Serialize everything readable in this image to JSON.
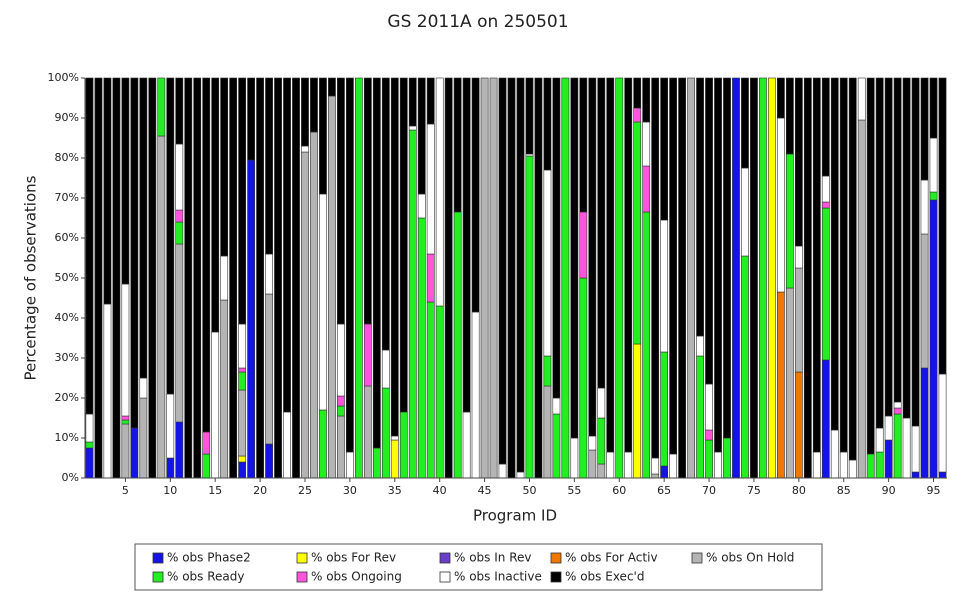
{
  "chart_data": {
    "type": "stacked-bar",
    "title": "GS 2011A on 250501",
    "x_label": "Program ID",
    "y_label": "Percentage of observations",
    "x": [
      1,
      2,
      3,
      4,
      5,
      6,
      7,
      8,
      9,
      10,
      11,
      12,
      13,
      14,
      15,
      16,
      17,
      18,
      19,
      20,
      21,
      22,
      23,
      24,
      25,
      26,
      27,
      28,
      29,
      30,
      31,
      32,
      33,
      34,
      35,
      36,
      37,
      38,
      39,
      40,
      41,
      42,
      43,
      44,
      45,
      46,
      47,
      48,
      49,
      50,
      51,
      52,
      53,
      54,
      55,
      56,
      57,
      58,
      59,
      60,
      61,
      62,
      63,
      64,
      65,
      66,
      67,
      68,
      69,
      70,
      71,
      72,
      73,
      74,
      75,
      76,
      77,
      78,
      79,
      80,
      81,
      82,
      83,
      84,
      85,
      86,
      87,
      88,
      89,
      90,
      91,
      92,
      93,
      94,
      95,
      96
    ],
    "xlim": [
      0.5,
      96.5
    ],
    "xticks": [
      5,
      10,
      15,
      20,
      25,
      30,
      35,
      40,
      45,
      50,
      55,
      60,
      65,
      70,
      75,
      80,
      85,
      90,
      95
    ],
    "ylim": [
      0,
      100
    ],
    "yticks": [
      {
        "value": 0,
        "label": "0%"
      },
      {
        "value": 10,
        "label": "10%"
      },
      {
        "value": 20,
        "label": "20%"
      },
      {
        "value": 30,
        "label": "30%"
      },
      {
        "value": 40,
        "label": "40%"
      },
      {
        "value": 50,
        "label": "50%"
      },
      {
        "value": 60,
        "label": "60%"
      },
      {
        "value": 70,
        "label": "70%"
      },
      {
        "value": 80,
        "label": "80%"
      },
      {
        "value": 90,
        "label": "90%"
      },
      {
        "value": 100,
        "label": "100%"
      }
    ],
    "series": [
      {
        "name": "% obs Phase2",
        "color": "#1414e6",
        "values": [
          7.5,
          0,
          0,
          0,
          0,
          12.5,
          0,
          0,
          0,
          5,
          14,
          0,
          0,
          0,
          0,
          0,
          0,
          4,
          79.5,
          0,
          8.5,
          0,
          0,
          0,
          0,
          0,
          0,
          0,
          0,
          0,
          0,
          0,
          0,
          0,
          0,
          0,
          0,
          0,
          0,
          0,
          0,
          0,
          0,
          0,
          0,
          0,
          0,
          0,
          0,
          0,
          0,
          0,
          0,
          0,
          0,
          0,
          0,
          0,
          0,
          0,
          0,
          0,
          0,
          0,
          3,
          0,
          0,
          0,
          0,
          0,
          0,
          0,
          100,
          0,
          0,
          0,
          0,
          0,
          0,
          0,
          0,
          0,
          29.5,
          0,
          0,
          0,
          0,
          0,
          0,
          9.5,
          0,
          0,
          1.5,
          27.5,
          69.5,
          1.5
        ]
      },
      {
        "name": "% obs For Rev",
        "color": "#ffff00",
        "values": [
          0,
          0,
          0,
          0,
          0,
          0,
          0,
          0,
          0,
          0,
          0,
          0,
          0,
          0,
          0,
          0,
          0,
          1.5,
          0,
          0,
          0,
          0,
          0,
          0,
          0,
          0,
          0,
          0,
          0,
          0,
          0,
          0,
          0,
          0,
          9.5,
          0,
          0,
          0,
          0,
          0,
          0,
          0,
          0,
          0,
          0,
          0,
          0,
          0,
          0,
          0,
          0,
          0,
          0,
          0,
          0,
          0,
          0,
          0,
          0,
          0,
          0,
          33.5,
          0,
          0,
          0,
          0,
          0,
          0,
          0,
          0,
          0,
          0,
          0,
          0,
          0,
          0,
          100,
          0,
          0,
          0,
          0,
          0,
          0,
          0,
          0,
          0,
          0,
          0,
          0,
          0,
          0,
          0,
          0,
          0,
          0,
          0
        ]
      },
      {
        "name": "% obs In Rev",
        "color": "#6a3fc8",
        "values": [
          0,
          0,
          0,
          0,
          0,
          0,
          0,
          0,
          0,
          0,
          0,
          0,
          0,
          0,
          0,
          0,
          0,
          0,
          0,
          0,
          0,
          0,
          0,
          0,
          0,
          0,
          0,
          0,
          0,
          0,
          0,
          0,
          0,
          0,
          0,
          0,
          0,
          0,
          0,
          0,
          0,
          0,
          0,
          0,
          0,
          0,
          0,
          0,
          0,
          0,
          0,
          0,
          0,
          0,
          0,
          0,
          0,
          0,
          0,
          0,
          0,
          0,
          0,
          0,
          0,
          0,
          0,
          0,
          0,
          0,
          0,
          0,
          0,
          0,
          0,
          0,
          0,
          0,
          0,
          0,
          0,
          0,
          0,
          0,
          0,
          0,
          0,
          0,
          0,
          0,
          0,
          0,
          0,
          0,
          0,
          0
        ]
      },
      {
        "name": "% obs For Activ",
        "color": "#f07800",
        "values": [
          0,
          0,
          0,
          0,
          0,
          0,
          0,
          0,
          0,
          0,
          0,
          0,
          0,
          0,
          0,
          0,
          0,
          0,
          0,
          0,
          0,
          0,
          0,
          0,
          0,
          0,
          0,
          0,
          0,
          0,
          0,
          0,
          0,
          0,
          0,
          0,
          0,
          0,
          0,
          0,
          0,
          0,
          0,
          0,
          0,
          0,
          0,
          0,
          0,
          0,
          0,
          0,
          0,
          0,
          0,
          0,
          0,
          0,
          0,
          0,
          0,
          0,
          0,
          0,
          0,
          0,
          0,
          0,
          0,
          0,
          0,
          0,
          0,
          0,
          0,
          0,
          0,
          46.5,
          0,
          26.5,
          0,
          0,
          0,
          0,
          0,
          0,
          0,
          0,
          0,
          0,
          0,
          0,
          0,
          0,
          0,
          0
        ]
      },
      {
        "name": "% obs On Hold",
        "color": "#b4b4b4",
        "values": [
          0,
          0,
          0,
          0,
          13.5,
          0,
          20,
          0,
          85.5,
          0,
          44.5,
          0,
          0,
          0,
          0,
          44.5,
          0,
          16.5,
          0,
          0,
          37.5,
          0,
          0,
          0,
          81.5,
          86.5,
          0,
          95.5,
          15.5,
          0,
          0,
          23,
          0,
          0,
          0,
          0,
          0,
          0,
          0,
          0,
          0,
          0,
          0,
          0,
          100,
          100,
          0,
          0,
          0,
          0,
          0,
          23,
          0,
          0,
          0,
          0,
          7,
          3.5,
          0,
          0,
          0,
          0,
          0,
          1,
          0,
          0,
          0,
          100,
          0,
          0,
          0,
          0,
          0,
          0,
          0,
          0,
          0,
          0,
          47.5,
          26,
          0,
          0,
          0,
          0,
          0,
          0,
          89.5,
          0,
          0,
          0,
          0,
          0,
          0,
          33.5,
          0,
          0
        ]
      },
      {
        "name": "% obs Ready",
        "color": "#22ee22",
        "values": [
          1.5,
          0,
          0,
          0,
          1,
          0,
          0,
          0,
          14.5,
          0,
          5.5,
          0,
          0,
          6,
          0,
          0,
          0,
          4.5,
          0,
          0,
          0,
          0,
          0,
          0,
          0,
          0,
          17,
          0,
          2.5,
          0,
          100,
          0,
          7.5,
          22.5,
          0,
          16.5,
          87,
          65,
          44,
          43,
          0,
          66.5,
          0,
          0,
          0,
          0,
          0,
          0,
          0,
          80.5,
          0,
          7.5,
          16,
          100,
          0,
          50,
          0,
          11.5,
          0,
          100,
          0,
          55.5,
          66.5,
          0,
          28.5,
          0,
          0,
          0,
          30.5,
          9.5,
          0,
          10,
          0,
          55.5,
          0,
          100,
          0,
          0,
          33.5,
          0,
          0,
          0,
          38,
          0,
          0,
          0,
          0,
          6,
          6.5,
          0,
          16,
          0,
          0,
          0,
          2,
          0
        ]
      },
      {
        "name": "% obs Ongoing",
        "color": "#ff55dd",
        "values": [
          0,
          0,
          0,
          0,
          1,
          0,
          0,
          0,
          0,
          0,
          3,
          0,
          0,
          5.5,
          0,
          0,
          0,
          1,
          0,
          0,
          0,
          0,
          0,
          0,
          0,
          0,
          0,
          0,
          2.5,
          0,
          0,
          15.5,
          0,
          0,
          0,
          0,
          0,
          0,
          12,
          0,
          0,
          0,
          0,
          0,
          0,
          0,
          0,
          0,
          0,
          0,
          0,
          0,
          0,
          0,
          0,
          16.5,
          0,
          0,
          0,
          0,
          0,
          3.5,
          11.5,
          0,
          0,
          0,
          0,
          0,
          0,
          2.5,
          0,
          0,
          0,
          0,
          0,
          0,
          0,
          0,
          0,
          0,
          0,
          0,
          1.5,
          0,
          0,
          0,
          0,
          0,
          0,
          0,
          1.5,
          0,
          0,
          0,
          0,
          0
        ]
      },
      {
        "name": "% obs Inactive",
        "color": "#ffffff",
        "values": [
          7,
          0,
          43.5,
          0,
          33,
          0,
          5,
          0,
          0,
          16,
          16.5,
          0,
          0,
          0,
          36.5,
          11,
          0,
          11,
          0,
          0,
          10,
          0,
          16.5,
          0,
          1.5,
          0,
          54,
          0,
          18,
          6.5,
          0,
          0,
          0,
          9.5,
          1,
          0,
          1,
          6,
          32.5,
          57,
          0,
          0,
          16.5,
          41.5,
          0,
          0,
          3.5,
          0,
          1.5,
          0.5,
          0,
          46.5,
          4,
          0,
          10,
          0,
          3.5,
          7.5,
          6.5,
          0,
          6.5,
          0,
          11,
          4,
          33,
          6,
          0,
          0,
          5,
          11.5,
          6.5,
          0,
          0,
          22,
          0,
          0,
          0,
          43.5,
          0,
          5.5,
          0,
          6.5,
          6.5,
          12,
          6.5,
          4.5,
          10.5,
          0,
          6,
          6,
          1.5,
          15,
          11.5,
          13.5,
          13.5,
          24.5
        ]
      },
      {
        "name": "% obs Exec'd",
        "color": "#000000",
        "values": [
          84,
          100,
          56.5,
          100,
          51.5,
          87.5,
          75,
          100,
          0,
          79,
          16.5,
          100,
          100,
          88.5,
          63.5,
          44.5,
          100,
          61.5,
          20.5,
          100,
          44,
          100,
          83.5,
          100,
          17,
          13.5,
          29,
          4.5,
          61.5,
          93.5,
          0,
          61.5,
          92.5,
          68,
          89.5,
          83.5,
          12,
          29,
          11.5,
          0,
          100,
          33.5,
          83.5,
          58.5,
          0,
          0,
          96.5,
          100,
          98.5,
          19,
          100,
          23,
          80,
          0,
          90,
          33.5,
          89.5,
          77.5,
          93.5,
          0,
          93.5,
          7.5,
          11,
          95,
          35.5,
          94,
          100,
          0,
          64.5,
          76.5,
          93.5,
          90,
          0,
          22.5,
          100,
          0,
          0,
          10,
          19,
          42,
          100,
          93.5,
          24.5,
          88,
          93.5,
          95.5,
          0,
          94,
          87.5,
          84.5,
          81,
          85,
          87,
          25.5,
          15,
          74
        ]
      }
    ]
  }
}
